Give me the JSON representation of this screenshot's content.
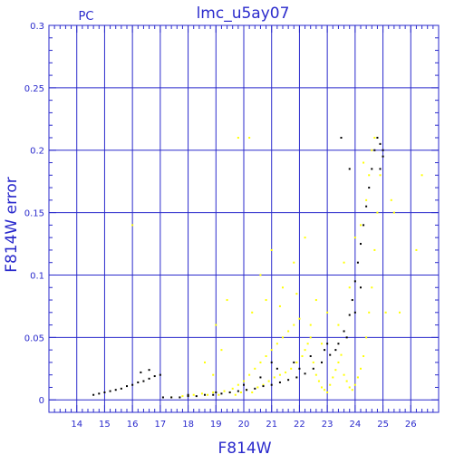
{
  "chart_data": {
    "type": "scatter",
    "title": "lmc_u5ay07",
    "corner_label": "PC",
    "xlabel": "F814W",
    "ylabel": "F814W error",
    "xlim": [
      13,
      27
    ],
    "ylim": [
      -0.01,
      0.3
    ],
    "x_ticks": [
      14,
      15,
      16,
      17,
      18,
      19,
      20,
      21,
      22,
      23,
      24,
      25,
      26
    ],
    "y_ticks": [
      0,
      0.05,
      0.1,
      0.15,
      0.2,
      0.25,
      0.3
    ],
    "y_tick_labels": [
      "0",
      "0.05",
      "0.1",
      "0.15",
      "0.2",
      "0.25",
      "0.3"
    ],
    "grid": true,
    "colors": {
      "axis": "#2a2acc",
      "grid": "#2a2acc",
      "series_black": "#000000",
      "series_yellow": "#ffff00"
    },
    "series": [
      {
        "color": "yellow",
        "points": [
          [
            17.4,
            0.002
          ],
          [
            17.8,
            0.003
          ],
          [
            18.2,
            0.004
          ],
          [
            18.5,
            0.005
          ],
          [
            18.7,
            0.004
          ],
          [
            18.9,
            0.006
          ],
          [
            19.1,
            0.004
          ],
          [
            19.3,
            0.007
          ],
          [
            19.5,
            0.006
          ],
          [
            19.6,
            0.009
          ],
          [
            19.7,
            0.004
          ],
          [
            19.8,
            0.012
          ],
          [
            19.9,
            0.006
          ],
          [
            20.0,
            0.015
          ],
          [
            20.1,
            0.008
          ],
          [
            20.2,
            0.02
          ],
          [
            20.3,
            0.006
          ],
          [
            20.4,
            0.025
          ],
          [
            20.5,
            0.01
          ],
          [
            20.6,
            0.03
          ],
          [
            20.7,
            0.012
          ],
          [
            20.8,
            0.035
          ],
          [
            20.9,
            0.015
          ],
          [
            21.0,
            0.04
          ],
          [
            21.1,
            0.018
          ],
          [
            21.2,
            0.045
          ],
          [
            21.3,
            0.02
          ],
          [
            21.4,
            0.05
          ],
          [
            21.5,
            0.022
          ],
          [
            21.6,
            0.055
          ],
          [
            21.7,
            0.025
          ],
          [
            21.8,
            0.06
          ],
          [
            21.9,
            0.03
          ],
          [
            22.0,
            0.065
          ],
          [
            22.1,
            0.035
          ],
          [
            22.2,
            0.04
          ],
          [
            22.3,
            0.045
          ],
          [
            22.4,
            0.05
          ],
          [
            22.5,
            0.03
          ],
          [
            22.6,
            0.02
          ],
          [
            22.7,
            0.015
          ],
          [
            22.8,
            0.01
          ],
          [
            22.9,
            0.008
          ],
          [
            23.0,
            0.006
          ],
          [
            23.1,
            0.012
          ],
          [
            23.2,
            0.018
          ],
          [
            23.3,
            0.024
          ],
          [
            23.4,
            0.03
          ],
          [
            23.5,
            0.036
          ],
          [
            23.6,
            0.02
          ],
          [
            23.7,
            0.015
          ],
          [
            23.8,
            0.01
          ],
          [
            23.9,
            0.008
          ],
          [
            24.0,
            0.012
          ],
          [
            24.1,
            0.018
          ],
          [
            24.2,
            0.025
          ],
          [
            24.3,
            0.035
          ],
          [
            24.4,
            0.05
          ],
          [
            24.5,
            0.07
          ],
          [
            24.6,
            0.09
          ],
          [
            24.7,
            0.12
          ],
          [
            24.8,
            0.15
          ],
          [
            24.5,
            0.18
          ],
          [
            24.6,
            0.2
          ],
          [
            24.7,
            0.21
          ],
          [
            24.4,
            0.16
          ],
          [
            24.3,
            0.19
          ],
          [
            24.2,
            0.14
          ],
          [
            24.9,
            0.18
          ],
          [
            25.1,
            0.07
          ],
          [
            25.3,
            0.16
          ],
          [
            25.4,
            0.15
          ],
          [
            25.6,
            0.07
          ],
          [
            26.2,
            0.12
          ],
          [
            26.4,
            0.18
          ],
          [
            16.0,
            0.14
          ],
          [
            19.8,
            0.21
          ],
          [
            20.2,
            0.21
          ],
          [
            20.6,
            0.1
          ],
          [
            21.0,
            0.12
          ],
          [
            21.4,
            0.09
          ],
          [
            21.8,
            0.11
          ],
          [
            22.2,
            0.13
          ],
          [
            22.6,
            0.08
          ],
          [
            23.0,
            0.07
          ],
          [
            19.0,
            0.06
          ],
          [
            19.4,
            0.08
          ],
          [
            19.2,
            0.04
          ],
          [
            20.3,
            0.07
          ],
          [
            20.8,
            0.08
          ],
          [
            21.3,
            0.075
          ],
          [
            21.9,
            0.085
          ],
          [
            22.4,
            0.06
          ],
          [
            22.8,
            0.045
          ],
          [
            23.4,
            0.06
          ],
          [
            24.0,
            0.13
          ],
          [
            23.8,
            0.09
          ],
          [
            23.6,
            0.11
          ],
          [
            18.6,
            0.03
          ],
          [
            18.9,
            0.02
          ]
        ]
      },
      {
        "color": "black",
        "points": [
          [
            14.6,
            0.004
          ],
          [
            14.8,
            0.005
          ],
          [
            15.0,
            0.006
          ],
          [
            15.2,
            0.007
          ],
          [
            15.4,
            0.008
          ],
          [
            15.6,
            0.009
          ],
          [
            15.8,
            0.011
          ],
          [
            16.0,
            0.012
          ],
          [
            16.2,
            0.014
          ],
          [
            16.4,
            0.015
          ],
          [
            16.6,
            0.017
          ],
          [
            16.8,
            0.019
          ],
          [
            17.0,
            0.02
          ],
          [
            16.3,
            0.022
          ],
          [
            16.6,
            0.024
          ],
          [
            17.1,
            0.002
          ],
          [
            17.4,
            0.002
          ],
          [
            17.7,
            0.002
          ],
          [
            18.0,
            0.003
          ],
          [
            18.3,
            0.003
          ],
          [
            18.6,
            0.004
          ],
          [
            18.9,
            0.004
          ],
          [
            19.2,
            0.005
          ],
          [
            19.5,
            0.006
          ],
          [
            19.8,
            0.007
          ],
          [
            20.1,
            0.008
          ],
          [
            20.4,
            0.009
          ],
          [
            20.7,
            0.011
          ],
          [
            21.0,
            0.012
          ],
          [
            21.3,
            0.014
          ],
          [
            21.6,
            0.016
          ],
          [
            21.9,
            0.018
          ],
          [
            22.2,
            0.021
          ],
          [
            22.5,
            0.025
          ],
          [
            22.8,
            0.03
          ],
          [
            23.1,
            0.036
          ],
          [
            23.4,
            0.045
          ],
          [
            23.6,
            0.055
          ],
          [
            23.8,
            0.068
          ],
          [
            23.9,
            0.08
          ],
          [
            24.0,
            0.095
          ],
          [
            24.1,
            0.11
          ],
          [
            24.2,
            0.125
          ],
          [
            24.3,
            0.14
          ],
          [
            24.4,
            0.155
          ],
          [
            24.5,
            0.17
          ],
          [
            24.6,
            0.185
          ],
          [
            24.7,
            0.2
          ],
          [
            24.8,
            0.21
          ],
          [
            24.9,
            0.205
          ],
          [
            25.0,
            0.195
          ],
          [
            24.2,
            0.09
          ],
          [
            24.0,
            0.07
          ],
          [
            23.7,
            0.05
          ],
          [
            23.3,
            0.04
          ],
          [
            22.9,
            0.04
          ],
          [
            22.4,
            0.035
          ],
          [
            21.8,
            0.03
          ],
          [
            21.2,
            0.025
          ],
          [
            20.6,
            0.018
          ],
          [
            23.5,
            0.21
          ],
          [
            24.9,
            0.185
          ],
          [
            25.0,
            0.2
          ],
          [
            23.8,
            0.185
          ],
          [
            21.0,
            0.03
          ],
          [
            20.0,
            0.012
          ],
          [
            19.0,
            0.006
          ],
          [
            18.0,
            0.004
          ],
          [
            22.0,
            0.025
          ],
          [
            23.0,
            0.045
          ]
        ]
      }
    ]
  }
}
